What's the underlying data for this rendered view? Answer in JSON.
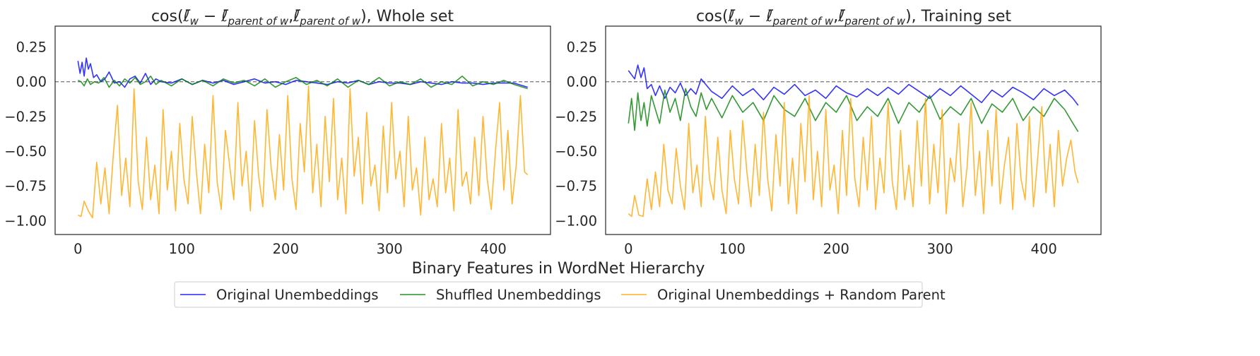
{
  "xlabel": "Binary Features in WordNet Hierarchy",
  "legend": {
    "placement": "bottom-center",
    "entries": [
      {
        "label": "Original Unembeddings",
        "color": "#0000ff"
      },
      {
        "label": "Shuffled Unembeddings",
        "color": "#008000"
      },
      {
        "label": "Original Unembeddings + Random Parent",
        "color": "#ffa500"
      }
    ]
  },
  "chart_data": [
    {
      "type": "line",
      "title": "cos(ℓ̄_w − ℓ̄_parent of w, ℓ̄_parent of w), Whole set",
      "title_parts": {
        "prefix": "cos(",
        "l": "ℓ̄",
        "w": "w",
        "minus": " − ",
        "parent": "parent of w",
        "comma": ",",
        "suffix": "), Whole set"
      },
      "xlabel": "",
      "ylabel": "",
      "xlim": [
        -22,
        455
      ],
      "ylim": [
        -1.1,
        0.4
      ],
      "xticks": [
        0,
        100,
        200,
        300,
        400
      ],
      "yticks": [
        0.25,
        0.0,
        -0.25,
        -0.5,
        -0.75,
        -1.0
      ],
      "ytick_labels": [
        "0.25",
        "0.00",
        "−0.25",
        "−0.50",
        "−0.75",
        "−1.00"
      ],
      "reference_line": 0.0,
      "grid": false,
      "series": [
        {
          "name": "Original Unembeddings",
          "color": "#0000ff",
          "x": [
            0,
            2,
            4,
            6,
            8,
            10,
            12,
            15,
            18,
            22,
            26,
            30,
            35,
            40,
            45,
            50,
            55,
            60,
            65,
            70,
            75,
            80,
            90,
            100,
            110,
            120,
            130,
            140,
            150,
            160,
            170,
            180,
            190,
            200,
            210,
            220,
            230,
            240,
            250,
            260,
            270,
            280,
            290,
            300,
            310,
            320,
            330,
            340,
            350,
            360,
            370,
            380,
            390,
            400,
            410,
            420,
            433
          ],
          "y": [
            0.15,
            0.06,
            0.14,
            0.04,
            0.17,
            0.09,
            0.13,
            0.03,
            0.05,
            0.0,
            0.02,
            0.07,
            -0.01,
            0.0,
            -0.04,
            0.02,
            0.04,
            -0.01,
            0.06,
            -0.02,
            0.02,
            0.0,
            -0.01,
            0.02,
            -0.02,
            0.01,
            -0.01,
            0.01,
            -0.02,
            0.0,
            0.02,
            -0.01,
            0.0,
            -0.02,
            0.01,
            0.0,
            -0.01,
            -0.02,
            0.0,
            -0.01,
            0.01,
            -0.02,
            0.0,
            -0.01,
            -0.01,
            -0.02,
            0.0,
            -0.01,
            -0.02,
            0.0,
            -0.01,
            -0.01,
            -0.02,
            -0.01,
            -0.01,
            -0.01,
            -0.04
          ]
        },
        {
          "name": "Shuffled Unembeddings",
          "color": "#008000",
          "x": [
            0,
            3,
            6,
            9,
            12,
            16,
            20,
            25,
            30,
            35,
            40,
            45,
            50,
            55,
            60,
            65,
            70,
            75,
            80,
            90,
            100,
            110,
            120,
            130,
            140,
            150,
            160,
            170,
            180,
            190,
            200,
            210,
            220,
            230,
            240,
            250,
            260,
            270,
            280,
            290,
            300,
            310,
            320,
            330,
            340,
            350,
            360,
            370,
            380,
            390,
            400,
            410,
            420,
            433
          ],
          "y": [
            0.01,
            0.0,
            -0.03,
            0.02,
            -0.02,
            0.0,
            -0.01,
            0.03,
            -0.04,
            0.01,
            -0.03,
            0.02,
            -0.01,
            0.03,
            -0.02,
            0.0,
            0.04,
            -0.02,
            0.01,
            -0.03,
            0.02,
            -0.02,
            0.01,
            -0.03,
            0.02,
            -0.01,
            0.01,
            -0.03,
            0.02,
            -0.04,
            0.0,
            0.03,
            -0.02,
            0.01,
            -0.03,
            0.02,
            -0.04,
            0.01,
            -0.02,
            0.03,
            -0.03,
            0.0,
            -0.02,
            0.02,
            -0.04,
            0.0,
            -0.02,
            0.04,
            -0.03,
            0.0,
            -0.02,
            0.01,
            -0.02,
            -0.05
          ]
        },
        {
          "name": "Original Unembeddings + Random Parent",
          "color": "#ffa500",
          "x": [
            0,
            3,
            6,
            10,
            14,
            18,
            22,
            26,
            30,
            34,
            38,
            42,
            46,
            50,
            54,
            58,
            62,
            66,
            70,
            74,
            78,
            82,
            86,
            90,
            94,
            98,
            102,
            106,
            110,
            114,
            118,
            122,
            126,
            130,
            134,
            138,
            142,
            146,
            150,
            154,
            158,
            162,
            166,
            170,
            174,
            178,
            182,
            186,
            190,
            194,
            198,
            202,
            206,
            210,
            214,
            218,
            222,
            226,
            230,
            234,
            238,
            242,
            246,
            250,
            254,
            258,
            262,
            266,
            270,
            274,
            278,
            282,
            286,
            290,
            294,
            298,
            302,
            306,
            310,
            314,
            318,
            322,
            326,
            330,
            334,
            338,
            342,
            346,
            350,
            354,
            358,
            362,
            366,
            370,
            374,
            378,
            382,
            386,
            390,
            394,
            398,
            402,
            406,
            410,
            414,
            418,
            422,
            426,
            430,
            433
          ],
          "y": [
            -0.96,
            -0.97,
            -0.86,
            -0.93,
            -0.98,
            -0.58,
            -0.88,
            -0.62,
            -0.95,
            -0.53,
            -0.17,
            -0.82,
            -0.55,
            -0.9,
            -0.05,
            -0.72,
            -0.92,
            -0.4,
            -0.85,
            -0.6,
            -0.95,
            -0.2,
            -0.78,
            -0.5,
            -0.93,
            -0.3,
            -0.7,
            -0.88,
            -0.25,
            -0.65,
            -0.95,
            -0.45,
            -0.8,
            -0.1,
            -0.72,
            -0.92,
            -0.35,
            -0.6,
            -0.85,
            -0.15,
            -0.75,
            -0.5,
            -0.93,
            -0.28,
            -0.68,
            -0.9,
            -0.2,
            -0.62,
            -0.85,
            -0.38,
            -0.78,
            -0.1,
            -0.7,
            -0.92,
            -0.3,
            -0.65,
            -0.03,
            -0.8,
            -0.45,
            -0.9,
            -0.25,
            -0.72,
            -0.12,
            -0.85,
            -0.55,
            -0.95,
            -0.05,
            -0.68,
            -0.4,
            -0.88,
            -0.22,
            -0.75,
            -0.6,
            -0.93,
            -0.32,
            -0.8,
            -0.15,
            -0.7,
            -0.5,
            -0.9,
            -0.25,
            -0.78,
            -0.62,
            -0.96,
            -0.4,
            -0.85,
            -0.7,
            -0.9,
            -0.3,
            -0.8,
            -0.55,
            -0.93,
            -0.2,
            -0.75,
            -0.65,
            -0.88,
            -0.4,
            -0.82,
            -0.25,
            -0.7,
            -0.92,
            -0.5,
            -0.15,
            -0.78,
            -0.35,
            -0.88,
            -0.6,
            -0.1,
            -0.65,
            -0.67
          ]
        }
      ]
    },
    {
      "type": "line",
      "title": "cos(ℓ̄_w − ℓ̄_parent of w, ℓ̄_parent of w), Training set",
      "title_parts": {
        "prefix": "cos(",
        "l": "ℓ̄",
        "w": "w",
        "minus": " − ",
        "parent": "parent of w",
        "comma": ",",
        "suffix": "), Training set"
      },
      "xlabel": "",
      "ylabel": "",
      "xlim": [
        -22,
        455
      ],
      "ylim": [
        -1.1,
        0.4
      ],
      "xticks": [
        0,
        100,
        200,
        300,
        400
      ],
      "yticks": [
        0.25,
        0.0,
        -0.25,
        -0.5,
        -0.75,
        -1.0
      ],
      "ytick_labels": [
        "0.25",
        "0.00",
        "−0.25",
        "−0.50",
        "−0.75",
        "−1.00"
      ],
      "reference_line": 0.0,
      "grid": false,
      "series": [
        {
          "name": "Original Unembeddings",
          "color": "#0000ff",
          "x": [
            0,
            3,
            6,
            9,
            12,
            15,
            18,
            22,
            26,
            30,
            35,
            40,
            45,
            50,
            55,
            60,
            65,
            70,
            80,
            90,
            100,
            110,
            120,
            130,
            140,
            150,
            160,
            170,
            180,
            190,
            200,
            210,
            220,
            230,
            240,
            250,
            260,
            270,
            280,
            290,
            300,
            310,
            320,
            330,
            340,
            350,
            360,
            370,
            380,
            390,
            400,
            410,
            420,
            428,
            433
          ],
          "y": [
            0.08,
            0.05,
            0.02,
            0.12,
            0.03,
            0.1,
            -0.05,
            -0.02,
            -0.1,
            -0.03,
            -0.12,
            -0.04,
            -0.08,
            -0.01,
            -0.1,
            -0.05,
            -0.09,
            0.02,
            -0.07,
            -0.12,
            -0.03,
            -0.1,
            -0.05,
            -0.13,
            -0.04,
            -0.09,
            -0.02,
            -0.1,
            -0.06,
            -0.12,
            -0.03,
            -0.08,
            -0.11,
            -0.05,
            -0.1,
            -0.04,
            -0.09,
            -0.02,
            -0.07,
            -0.12,
            -0.05,
            -0.1,
            -0.03,
            -0.09,
            -0.15,
            -0.06,
            -0.11,
            -0.04,
            -0.08,
            -0.13,
            -0.05,
            -0.1,
            -0.06,
            -0.12,
            -0.17
          ]
        },
        {
          "name": "Shuffled Unembeddings",
          "color": "#008000",
          "x": [
            0,
            3,
            6,
            9,
            12,
            15,
            18,
            22,
            26,
            30,
            35,
            40,
            45,
            50,
            55,
            60,
            65,
            70,
            75,
            80,
            90,
            100,
            110,
            120,
            130,
            140,
            150,
            160,
            170,
            180,
            190,
            200,
            210,
            220,
            230,
            240,
            250,
            260,
            270,
            280,
            290,
            300,
            310,
            320,
            330,
            340,
            350,
            360,
            370,
            380,
            390,
            400,
            410,
            420,
            428,
            433
          ],
          "y": [
            -0.3,
            -0.12,
            -0.35,
            -0.08,
            -0.28,
            -0.15,
            -0.32,
            -0.1,
            -0.2,
            -0.3,
            -0.06,
            -0.22,
            -0.12,
            -0.28,
            -0.05,
            -0.18,
            -0.25,
            -0.08,
            -0.2,
            -0.12,
            -0.26,
            -0.1,
            -0.22,
            -0.15,
            -0.28,
            -0.1,
            -0.2,
            -0.25,
            -0.12,
            -0.28,
            -0.15,
            -0.22,
            -0.1,
            -0.28,
            -0.18,
            -0.25,
            -0.12,
            -0.3,
            -0.15,
            -0.22,
            -0.1,
            -0.27,
            -0.18,
            -0.24,
            -0.12,
            -0.3,
            -0.16,
            -0.22,
            -0.12,
            -0.28,
            -0.18,
            -0.25,
            -0.12,
            -0.2,
            -0.3,
            -0.36
          ]
        },
        {
          "name": "Original Unembeddings + Random Parent",
          "color": "#ffa500",
          "x": [
            0,
            3,
            6,
            10,
            14,
            18,
            22,
            26,
            30,
            34,
            38,
            42,
            46,
            50,
            54,
            58,
            62,
            66,
            70,
            74,
            78,
            82,
            86,
            90,
            94,
            98,
            102,
            106,
            110,
            114,
            118,
            122,
            126,
            130,
            134,
            138,
            142,
            146,
            150,
            154,
            158,
            162,
            166,
            170,
            174,
            178,
            182,
            186,
            190,
            194,
            198,
            202,
            206,
            210,
            214,
            218,
            222,
            226,
            230,
            234,
            238,
            242,
            246,
            250,
            254,
            258,
            262,
            266,
            270,
            274,
            278,
            282,
            286,
            290,
            294,
            298,
            302,
            306,
            310,
            314,
            318,
            322,
            326,
            330,
            334,
            338,
            342,
            346,
            350,
            354,
            358,
            362,
            366,
            370,
            374,
            378,
            382,
            386,
            390,
            394,
            398,
            402,
            406,
            410,
            414,
            418,
            422,
            426,
            430,
            433
          ],
          "y": [
            -0.95,
            -0.97,
            -0.82,
            -0.96,
            -0.97,
            -0.7,
            -0.92,
            -0.65,
            -0.9,
            -0.45,
            -0.78,
            -0.88,
            -0.48,
            -0.75,
            -0.92,
            -0.3,
            -0.8,
            -0.6,
            -0.9,
            -0.25,
            -0.7,
            -0.85,
            -0.4,
            -0.78,
            -0.95,
            -0.35,
            -0.7,
            -0.88,
            -0.28,
            -0.65,
            -0.9,
            -0.45,
            -0.82,
            -0.22,
            -0.7,
            -0.93,
            -0.38,
            -0.75,
            -0.15,
            -0.88,
            -0.55,
            -0.95,
            -0.3,
            -0.72,
            -0.1,
            -0.85,
            -0.5,
            -0.9,
            -0.2,
            -0.78,
            -0.6,
            -0.95,
            -0.35,
            -0.82,
            -0.12,
            -0.7,
            -0.9,
            -0.4,
            -0.78,
            -0.25,
            -0.92,
            -0.55,
            -0.8,
            -0.15,
            -0.72,
            -0.92,
            -0.35,
            -0.85,
            -0.6,
            -0.9,
            -0.28,
            -0.75,
            -0.12,
            -0.88,
            -0.45,
            -0.8,
            -0.2,
            -0.95,
            -0.55,
            -0.72,
            -0.3,
            -0.9,
            -0.62,
            -0.15,
            -0.82,
            -0.5,
            -0.95,
            -0.35,
            -0.75,
            -0.2,
            -0.88,
            -0.6,
            -0.4,
            -0.92,
            -0.3,
            -0.7,
            -0.85,
            -0.25,
            -0.9,
            -0.55,
            -0.18,
            -0.8,
            -0.45,
            -0.9,
            -0.35,
            -0.75,
            -0.55,
            -0.42,
            -0.65,
            -0.73
          ]
        }
      ]
    }
  ]
}
